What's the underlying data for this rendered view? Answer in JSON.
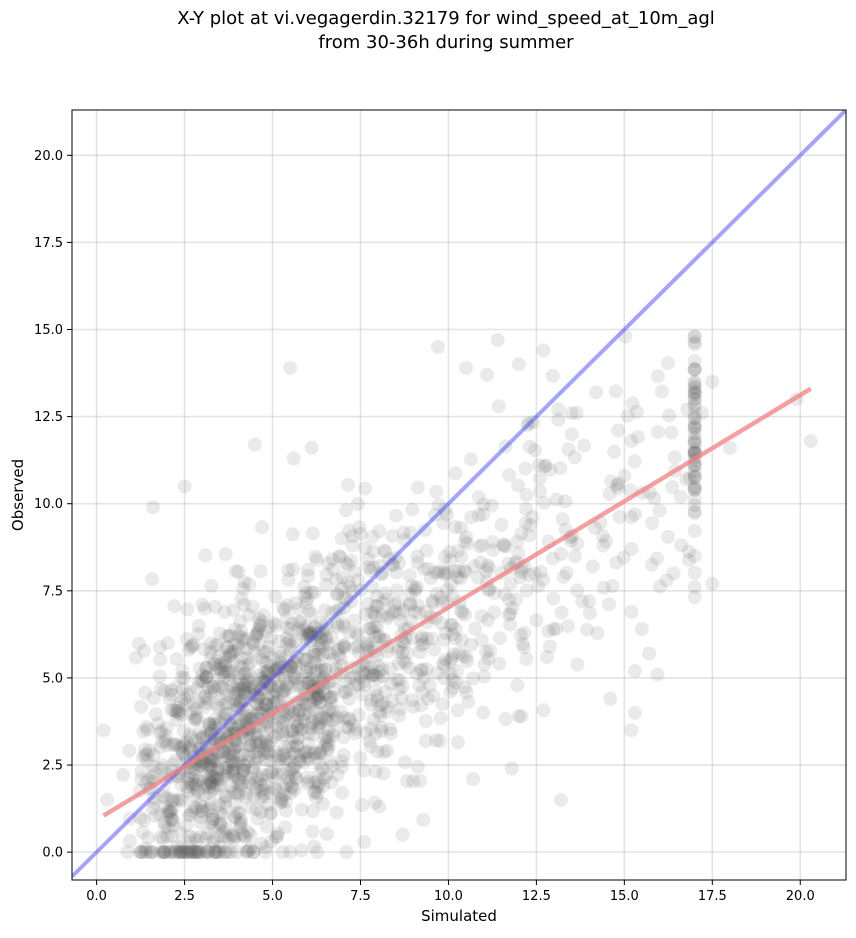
{
  "chart_data": {
    "type": "scatter",
    "title_line1": "X-Y plot at vi.vegagerdin.32179 for wind_speed_at_10m_agl",
    "title_line2": "from 30-36h during summer",
    "xlabel": "Simulated",
    "ylabel": "Observed",
    "xlim": [
      -0.7,
      21.3
    ],
    "ylim": [
      -0.8,
      21.3
    ],
    "x_ticks": [
      0.0,
      2.5,
      5.0,
      7.5,
      10.0,
      12.5,
      15.0,
      17.5,
      20.0
    ],
    "x_tick_labels": [
      "0.0",
      "2.5",
      "5.0",
      "7.5",
      "10.0",
      "12.5",
      "15.0",
      "17.5",
      "20.0"
    ],
    "y_ticks": [
      0.0,
      2.5,
      5.0,
      7.5,
      10.0,
      12.5,
      15.0,
      17.5,
      20.0
    ],
    "y_tick_labels": [
      "0.0",
      "2.5",
      "5.0",
      "7.5",
      "10.0",
      "12.5",
      "15.0",
      "17.5",
      "20.0"
    ],
    "grid": true,
    "point_color": "#555555",
    "identity_line": {
      "color": "#4a4aff",
      "x": [
        -0.7,
        21.3
      ],
      "y": [
        -0.7,
        21.3
      ]
    },
    "regression_line": {
      "color": "#f08080",
      "x": [
        0.2,
        20.3
      ],
      "y": [
        1.05,
        13.3
      ]
    },
    "outliers": [
      [
        5.5,
        13.9
      ],
      [
        9.7,
        14.5
      ],
      [
        11.4,
        14.7
      ],
      [
        12.7,
        14.4
      ],
      [
        11.1,
        13.7
      ],
      [
        10.5,
        13.9
      ],
      [
        12.0,
        14.0
      ],
      [
        14.2,
        13.2
      ],
      [
        17.5,
        13.5
      ],
      [
        19.9,
        13.0
      ],
      [
        20.3,
        11.8
      ],
      [
        18.0,
        11.6
      ],
      [
        17.0,
        12.6
      ],
      [
        17.2,
        12.6
      ],
      [
        15.2,
        11.8
      ],
      [
        15.0,
        10.8
      ],
      [
        16.0,
        9.8
      ],
      [
        16.6,
        10.2
      ],
      [
        15.3,
        9.7
      ],
      [
        15.2,
        8.7
      ],
      [
        16.2,
        7.8
      ],
      [
        16.4,
        8.0
      ],
      [
        17.5,
        7.7
      ],
      [
        15.2,
        6.9
      ],
      [
        15.5,
        6.4
      ],
      [
        15.7,
        5.7
      ],
      [
        15.3,
        5.2
      ],
      [
        14.6,
        4.4
      ],
      [
        15.2,
        3.5
      ],
      [
        15.3,
        4.0
      ],
      [
        13.2,
        1.5
      ],
      [
        1.6,
        9.9
      ],
      [
        2.5,
        10.5
      ],
      [
        4.5,
        11.7
      ],
      [
        5.6,
        11.3
      ],
      [
        0.2,
        3.5
      ],
      [
        0.3,
        1.5
      ],
      [
        13.8,
        7.2
      ],
      [
        14.0,
        7.2
      ],
      [
        12.8,
        5.6
      ],
      [
        12.0,
        3.9
      ],
      [
        14.1,
        8.2
      ],
      [
        13.6,
        8.5
      ],
      [
        11.8,
        2.4
      ],
      [
        10.7,
        2.1
      ],
      [
        8.7,
        0.5
      ],
      [
        7.1,
        0.0
      ],
      [
        5.5,
        0.0
      ],
      [
        14.4,
        8.8
      ],
      [
        13.5,
        12.6
      ]
    ],
    "random_sample": {
      "count": 1700,
      "seed": 32179,
      "x_distribution": "lognormal",
      "x_median": 5.6,
      "x_log_sigma": 0.6,
      "x_min": 0.5,
      "x_max": 17.0,
      "y_intercept": 0.9,
      "y_slope": 0.62,
      "y_noise_sd": 1.9,
      "y_min": 0.0,
      "y_max": 14.8
    },
    "identity_and_regression_lines_unlabeled": true
  }
}
